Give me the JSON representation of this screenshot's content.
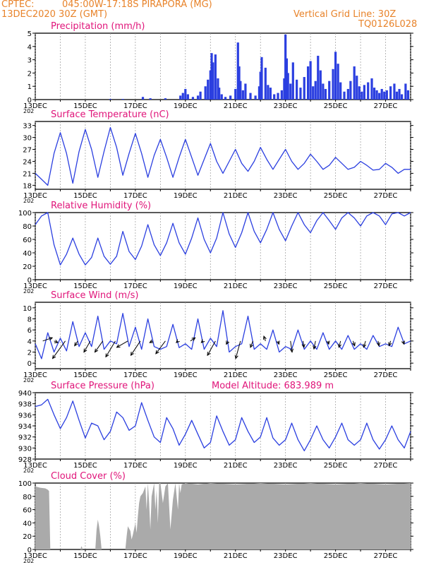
{
  "header": {
    "source": "CPTEC:",
    "location": "045:00W-17:18S  PIRAPORA (MG)",
    "run": "13DEC2020 30Z (GMT)",
    "grid_line": "Vertical Grid Line: 30Z",
    "model_code": "TQ0126L028"
  },
  "colors": {
    "line": "#2b3fe0",
    "bars": "#2b3fe0",
    "cloud": "#aaaaaa",
    "title": "#e0157a",
    "header": "#e8832a"
  },
  "x_axis": {
    "start_day": 13,
    "end_day": 28,
    "tick_labels": [
      "13DEC",
      "15DEC",
      "17DEC",
      "19DEC",
      "21DEC",
      "23DEC",
      "25DEC",
      "27DEC"
    ],
    "tick_days": [
      13,
      15,
      17,
      19,
      21,
      23,
      25,
      27
    ],
    "year_fragment": "202"
  },
  "chart_data": [
    {
      "id": "precip",
      "type": "bar",
      "title": "Precipitation (mm/h)",
      "ylim": [
        0,
        5
      ],
      "yticks": [
        0,
        1,
        2,
        3,
        4,
        5
      ],
      "x": [
        16.0,
        16.5,
        17.3,
        17.6,
        18.2,
        18.8,
        18.9,
        19.0,
        19.1,
        19.3,
        19.5,
        19.6,
        19.8,
        19.9,
        20.0,
        20.05,
        20.1,
        20.2,
        20.3,
        20.35,
        20.45,
        20.6,
        20.8,
        21.0,
        21.1,
        21.15,
        21.2,
        21.3,
        21.4,
        21.6,
        21.8,
        21.95,
        22.0,
        22.05,
        22.2,
        22.3,
        22.4,
        22.55,
        22.7,
        22.85,
        22.95,
        23.0,
        23.05,
        23.1,
        23.2,
        23.3,
        23.45,
        23.6,
        23.75,
        23.9,
        24.0,
        24.1,
        24.2,
        24.3,
        24.4,
        24.5,
        24.6,
        24.75,
        24.9,
        25.0,
        25.1,
        25.2,
        25.35,
        25.5,
        25.6,
        25.75,
        25.85,
        25.95,
        26.05,
        26.15,
        26.3,
        26.45,
        26.55,
        26.65,
        26.75,
        26.85,
        26.95,
        27.05,
        27.2,
        27.35,
        27.45,
        27.55,
        27.65,
        27.8,
        27.9
      ],
      "values": [
        0.05,
        0.05,
        0.2,
        0.1,
        0.1,
        0.3,
        0.5,
        0.8,
        0.4,
        0.2,
        0.3,
        0.6,
        1.0,
        1.5,
        2.2,
        3.5,
        2.8,
        3.4,
        1.6,
        0.9,
        0.4,
        0.2,
        0.3,
        0.8,
        4.3,
        2.5,
        1.4,
        0.7,
        1.2,
        0.5,
        0.3,
        1.0,
        2.1,
        3.2,
        2.4,
        1.1,
        0.9,
        0.4,
        0.5,
        0.7,
        1.6,
        4.9,
        3.1,
        2.0,
        1.2,
        2.8,
        1.5,
        0.9,
        1.7,
        2.5,
        2.9,
        1.0,
        1.4,
        3.3,
        2.2,
        1.2,
        0.8,
        1.4,
        2.3,
        3.6,
        2.7,
        1.3,
        0.6,
        0.8,
        1.4,
        2.5,
        1.8,
        1.0,
        0.6,
        1.1,
        1.3,
        1.6,
        0.9,
        0.7,
        0.5,
        0.8,
        0.6,
        0.7,
        1.0,
        1.2,
        0.6,
        0.8,
        0.4,
        1.2,
        0.7
      ]
    },
    {
      "id": "temp",
      "type": "line",
      "title": "Surface Temperature (nC)",
      "ylim": [
        17,
        34
      ],
      "yticks": [
        18,
        21,
        24,
        27,
        30,
        33
      ],
      "x": [
        13.0,
        13.25,
        13.5,
        13.75,
        14.0,
        14.25,
        14.5,
        14.75,
        15.0,
        15.25,
        15.5,
        15.75,
        16.0,
        16.25,
        16.5,
        16.75,
        17.0,
        17.25,
        17.5,
        17.75,
        18.0,
        18.25,
        18.5,
        18.75,
        19.0,
        19.25,
        19.5,
        19.75,
        20.0,
        20.25,
        20.5,
        20.75,
        21.0,
        21.25,
        21.5,
        21.75,
        22.0,
        22.25,
        22.5,
        22.75,
        23.0,
        23.25,
        23.5,
        23.75,
        24.0,
        24.25,
        24.5,
        24.75,
        25.0,
        25.25,
        25.5,
        25.75,
        26.0,
        26.25,
        26.5,
        26.75,
        27.0,
        27.25,
        27.5,
        27.75,
        28.0
      ],
      "values": [
        21.0,
        19.5,
        18.0,
        26.0,
        31.2,
        26.0,
        18.5,
        26.5,
        32.0,
        27.0,
        20.0,
        26.5,
        32.5,
        27.5,
        20.5,
        26.0,
        31.0,
        26.0,
        20.0,
        25.5,
        29.5,
        25.0,
        20.0,
        25.0,
        29.5,
        25.0,
        20.5,
        24.5,
        28.5,
        24.0,
        21.0,
        24.0,
        27.0,
        23.5,
        21.5,
        24.0,
        27.5,
        24.5,
        22.0,
        24.5,
        27.0,
        24.0,
        22.0,
        23.5,
        25.8,
        24.0,
        22.0,
        23.0,
        25.0,
        23.5,
        22.0,
        22.5,
        24.0,
        23.0,
        21.8,
        22.0,
        23.5,
        22.5,
        21.0,
        22.0,
        22.0
      ]
    },
    {
      "id": "rh",
      "type": "line",
      "title": "Relative Humidity (%)",
      "ylim": [
        0,
        100
      ],
      "yticks": [
        0,
        20,
        40,
        60,
        80,
        100
      ],
      "x": [
        13.0,
        13.25,
        13.5,
        13.75,
        14.0,
        14.25,
        14.5,
        14.75,
        15.0,
        15.25,
        15.5,
        15.75,
        16.0,
        16.25,
        16.5,
        16.75,
        17.0,
        17.25,
        17.5,
        17.75,
        18.0,
        18.25,
        18.5,
        18.75,
        19.0,
        19.25,
        19.5,
        19.75,
        20.0,
        20.25,
        20.5,
        20.75,
        21.0,
        21.25,
        21.5,
        21.75,
        22.0,
        22.25,
        22.5,
        22.75,
        23.0,
        23.25,
        23.5,
        23.75,
        24.0,
        24.25,
        24.5,
        24.75,
        25.0,
        25.25,
        25.5,
        25.75,
        26.0,
        26.25,
        26.5,
        26.75,
        27.0,
        27.25,
        27.5,
        27.75,
        28.0
      ],
      "values": [
        82,
        95,
        100,
        52,
        22,
        38,
        62,
        38,
        22,
        33,
        62,
        35,
        23,
        35,
        72,
        42,
        30,
        50,
        82,
        52,
        36,
        55,
        84,
        55,
        38,
        62,
        92,
        60,
        40,
        62,
        100,
        68,
        48,
        70,
        100,
        72,
        55,
        75,
        100,
        75,
        58,
        80,
        100,
        82,
        70,
        88,
        100,
        88,
        75,
        92,
        100,
        92,
        80,
        95,
        100,
        95,
        82,
        98,
        100,
        95,
        100
      ]
    },
    {
      "id": "wind",
      "type": "line",
      "title": "Surface Wind (m/s)",
      "ylim": [
        -1,
        11
      ],
      "yticks": [
        0,
        2,
        4,
        6,
        8,
        10
      ],
      "x": [
        13.0,
        13.25,
        13.5,
        13.75,
        14.0,
        14.25,
        14.5,
        14.75,
        15.0,
        15.25,
        15.5,
        15.75,
        16.0,
        16.25,
        16.5,
        16.75,
        17.0,
        17.25,
        17.5,
        17.75,
        18.0,
        18.25,
        18.5,
        18.75,
        19.0,
        19.25,
        19.5,
        19.75,
        20.0,
        20.25,
        20.5,
        20.75,
        21.0,
        21.25,
        21.5,
        21.75,
        22.0,
        22.25,
        22.5,
        22.75,
        23.0,
        23.25,
        23.5,
        23.75,
        24.0,
        24.25,
        24.5,
        24.75,
        25.0,
        25.25,
        25.5,
        25.75,
        26.0,
        26.25,
        26.5,
        26.75,
        27.0,
        27.25,
        27.5,
        27.75,
        28.0
      ],
      "values": [
        3.5,
        0.8,
        5.5,
        2.0,
        4.5,
        2.2,
        7.5,
        3.0,
        5.5,
        3.0,
        8.5,
        2.5,
        4.0,
        3.5,
        9.0,
        3.0,
        6.5,
        2.5,
        8.0,
        3.0,
        2.5,
        3.0,
        7.0,
        2.8,
        3.5,
        2.5,
        8.0,
        2.5,
        4.5,
        3.0,
        9.5,
        2.0,
        3.0,
        3.5,
        8.5,
        2.5,
        3.5,
        2.5,
        6.0,
        2.0,
        3.0,
        2.5,
        6.0,
        2.5,
        4.0,
        2.5,
        5.5,
        2.5,
        4.0,
        2.5,
        5.0,
        2.5,
        3.5,
        2.5,
        5.0,
        3.0,
        3.5,
        3.0,
        6.5,
        3.5,
        4.0
      ],
      "arrow_x": [
        13.3,
        13.75,
        14.2,
        14.7,
        15.2,
        15.7,
        16.2,
        16.7,
        17.2,
        17.7,
        18.2,
        18.7,
        19.2,
        19.7,
        20.2,
        20.7,
        21.2,
        21.7,
        22.2,
        22.7,
        23.2,
        23.7,
        24.2,
        24.7,
        25.2,
        25.7,
        26.2,
        26.7,
        27.2,
        27.7
      ],
      "arrow_u": [
        3.0,
        1.2,
        -4.0,
        -1.0,
        -2.0,
        -2.5,
        -3.0,
        -3.5,
        -3.0,
        -1.0,
        -3.0,
        -0.5,
        1.5,
        -0.5,
        -2.5,
        -0.5,
        -1.5,
        -0.8,
        -0.5,
        0.3,
        0.5,
        0.3,
        -0.5,
        0.2,
        -0.5,
        0.5,
        -0.6,
        0.3,
        -0.5,
        0.3
      ],
      "arrow_v": [
        1.0,
        -0.5,
        -5.5,
        -1.5,
        -3.5,
        -3.5,
        -5.0,
        -2.0,
        -4.5,
        -0.5,
        -4.0,
        -0.5,
        1.0,
        -0.5,
        -4.5,
        -1.0,
        -5.5,
        -2.0,
        1.5,
        -1.0,
        -3.5,
        -2.0,
        -2.5,
        -1.0,
        -2.0,
        -1.5,
        -2.0,
        -1.5,
        -1.5,
        -1.0
      ]
    },
    {
      "id": "pres",
      "type": "line",
      "title": "Surface Pressure (hPa)",
      "annotation": "Model Altitude: 683.989 m",
      "ylim": [
        928,
        940
      ],
      "yticks": [
        928,
        930,
        932,
        934,
        936,
        938,
        940
      ],
      "x": [
        13.0,
        13.25,
        13.5,
        13.75,
        14.0,
        14.25,
        14.5,
        14.75,
        15.0,
        15.25,
        15.5,
        15.75,
        16.0,
        16.25,
        16.5,
        16.75,
        17.0,
        17.25,
        17.5,
        17.75,
        18.0,
        18.25,
        18.5,
        18.75,
        19.0,
        19.25,
        19.5,
        19.75,
        20.0,
        20.25,
        20.5,
        20.75,
        21.0,
        21.25,
        21.5,
        21.75,
        22.0,
        22.25,
        22.5,
        22.75,
        23.0,
        23.25,
        23.5,
        23.75,
        24.0,
        24.25,
        24.5,
        24.75,
        25.0,
        25.25,
        25.5,
        25.75,
        26.0,
        26.25,
        26.5,
        26.75,
        27.0,
        27.25,
        27.5,
        27.75,
        28.0
      ],
      "values": [
        937.5,
        937.8,
        938.8,
        936.0,
        933.5,
        935.5,
        938.5,
        935.0,
        931.8,
        934.5,
        934.0,
        931.5,
        933.0,
        936.5,
        935.5,
        933.2,
        934.0,
        938.2,
        935.0,
        932.0,
        931.0,
        935.5,
        933.5,
        930.5,
        932.5,
        935.0,
        932.5,
        930.0,
        931.0,
        935.8,
        933.0,
        930.5,
        931.5,
        935.5,
        933.0,
        931.0,
        932.0,
        935.5,
        931.8,
        930.5,
        931.5,
        934.5,
        931.5,
        929.5,
        931.5,
        934.0,
        931.5,
        930.0,
        932.0,
        934.5,
        931.5,
        930.5,
        931.5,
        934.5,
        931.5,
        929.8,
        931.5,
        934.0,
        931.5,
        930.0,
        933.0
      ]
    },
    {
      "id": "cloud",
      "type": "area",
      "title": "Cloud Cover (%)",
      "ylim": [
        0,
        100
      ],
      "yticks": [
        0,
        20,
        40,
        60,
        80,
        100
      ],
      "x": [
        13.0,
        13.2,
        13.4,
        13.5,
        13.55,
        13.6,
        14.0,
        14.8,
        14.85,
        14.9,
        15.0,
        15.4,
        15.45,
        15.5,
        15.55,
        15.6,
        15.65,
        15.7,
        16.0,
        16.5,
        16.6,
        16.65,
        16.7,
        16.8,
        16.85,
        16.9,
        17.0,
        17.05,
        17.1,
        17.15,
        17.2,
        17.3,
        17.4,
        17.45,
        17.5,
        17.55,
        17.6,
        17.65,
        17.75,
        17.8,
        17.85,
        17.9,
        17.95,
        18.0,
        18.1,
        18.2,
        18.3,
        18.4,
        18.5,
        18.6,
        18.7,
        18.75,
        18.8,
        18.85,
        19.0,
        19.5,
        20.0,
        21.0,
        22.0,
        23.0,
        24.0,
        25.0,
        26.0,
        27.0,
        28.0
      ],
      "values": [
        95,
        93,
        92,
        90,
        88,
        0,
        0,
        0,
        5,
        0,
        0,
        0,
        30,
        45,
        35,
        20,
        0,
        0,
        0,
        0,
        0,
        20,
        35,
        28,
        15,
        22,
        40,
        25,
        50,
        70,
        80,
        85,
        95,
        60,
        100,
        70,
        30,
        80,
        100,
        60,
        90,
        40,
        100,
        100,
        70,
        95,
        100,
        30,
        75,
        100,
        60,
        100,
        85,
        98,
        100,
        98,
        100,
        98,
        100,
        98,
        100,
        98,
        100,
        98,
        100
      ]
    }
  ]
}
